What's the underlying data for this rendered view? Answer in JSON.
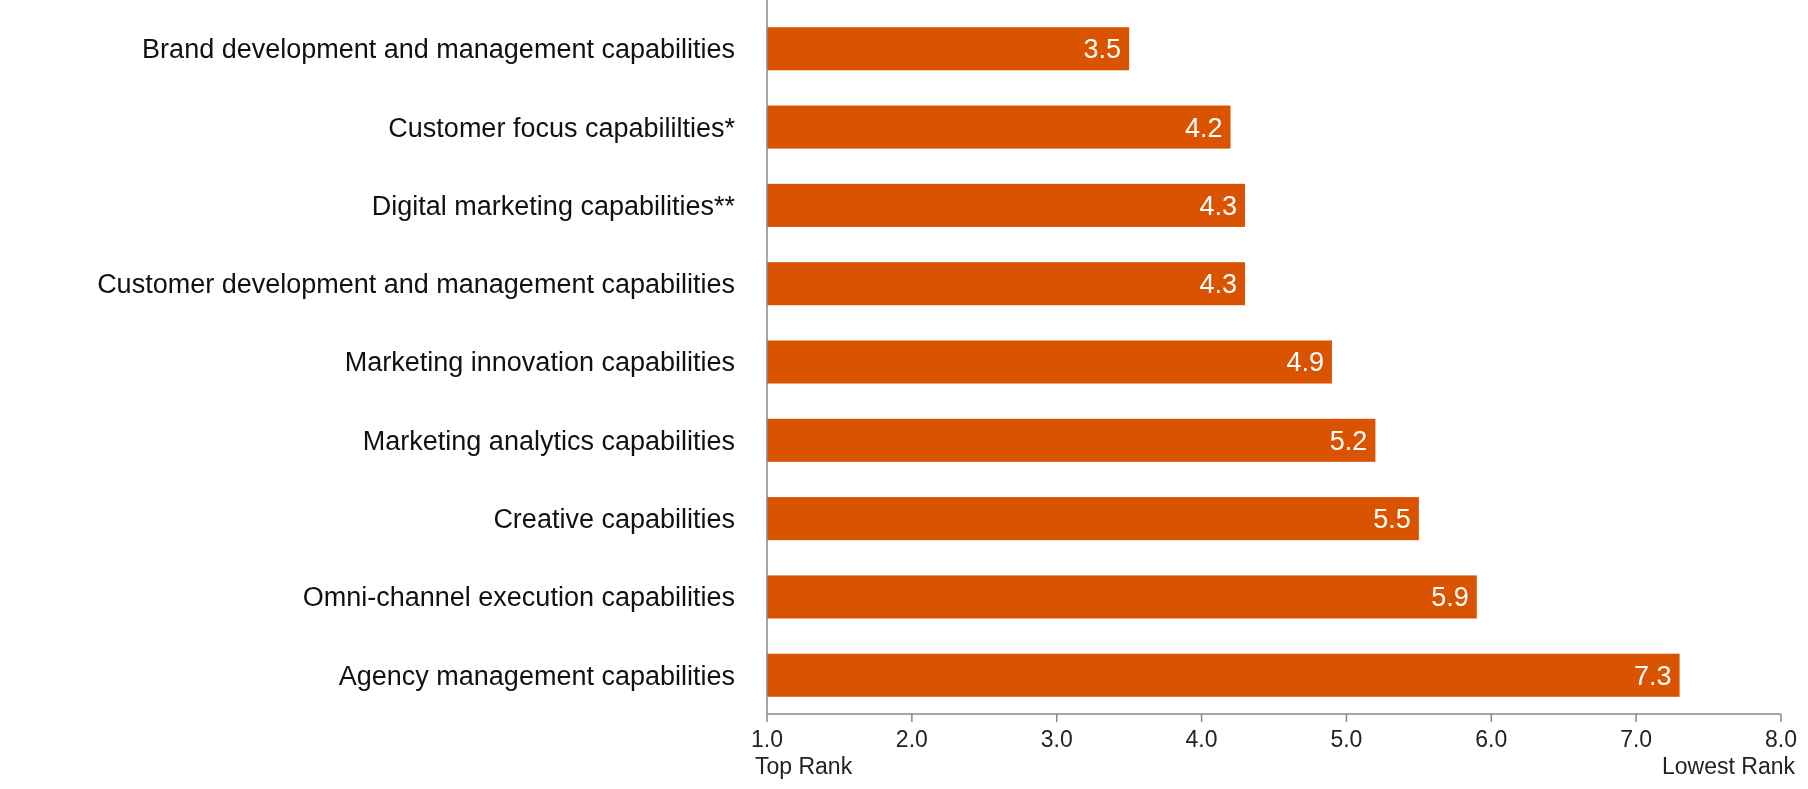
{
  "chart_data": {
    "type": "bar",
    "orientation": "horizontal",
    "categories": [
      "Brand development and management capabilities",
      "Customer focus capabililties*",
      "Digital marketing capabilities**",
      "Customer development and management capabilities",
      "Marketing innovation capabilities",
      "Marketing analytics capabilities",
      "Creative capabilities",
      "Omni-channel execution capabilities",
      "Agency management capabilities"
    ],
    "values": [
      3.5,
      4.2,
      4.3,
      4.3,
      4.9,
      5.2,
      5.5,
      5.9,
      7.3
    ],
    "color": "#d95300",
    "data_labels": true,
    "xlim": [
      1,
      8
    ],
    "xticks": [
      {
        "value": 1,
        "label": "1.0"
      },
      {
        "value": 2,
        "label": "2.0"
      },
      {
        "value": 3,
        "label": "3.0"
      },
      {
        "value": 4,
        "label": "4.0"
      },
      {
        "value": 5,
        "label": "5.0"
      },
      {
        "value": 6,
        "label": "6.0"
      },
      {
        "value": 7,
        "label": "7.0"
      },
      {
        "value": 8,
        "label": "8.0"
      }
    ],
    "annotations": [
      "Top Rank",
      "Lowest Rank"
    ],
    "grid": false
  }
}
